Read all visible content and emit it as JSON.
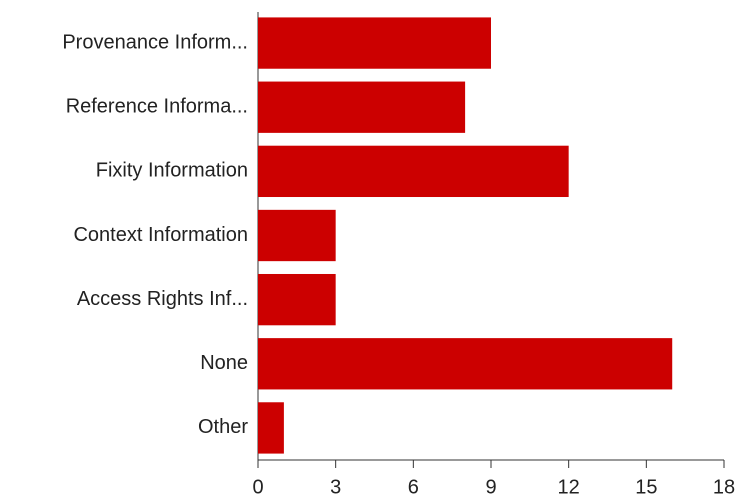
{
  "chart_data": {
    "type": "bar",
    "orientation": "horizontal",
    "categories": [
      "Provenance Inform...",
      "Reference Informa...",
      "Fixity Information",
      "Context Information",
      "Access Rights Inf...",
      "None",
      "Other"
    ],
    "values": [
      9,
      8,
      12,
      3,
      3,
      16,
      1
    ],
    "color": "#cc0000",
    "xlim": [
      0,
      18
    ],
    "xticks": [
      0,
      3,
      6,
      9,
      12,
      15,
      18
    ],
    "grid": false
  }
}
